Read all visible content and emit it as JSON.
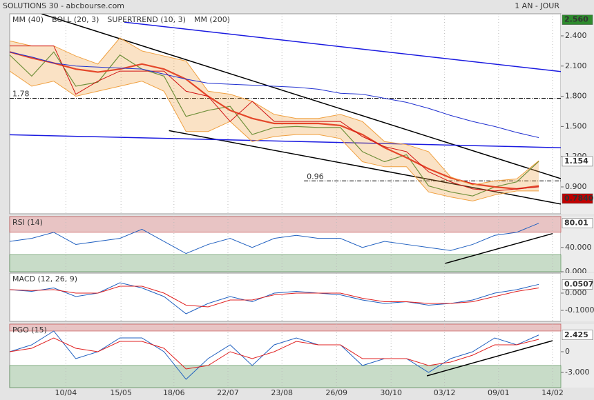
{
  "header": {
    "title": "SOLUTIONS 30 - abcbourse.com",
    "period": "1 AN - JOUR"
  },
  "chart_data": [
    {
      "type": "line",
      "xlim": [
        0,
        100
      ],
      "ylim": [
        0.633,
        2.619
      ],
      "yticks": [
        {
          "value": 2.4,
          "label": "2.400"
        },
        {
          "value": 2.1,
          "label": "2.100"
        },
        {
          "value": 1.8,
          "label": "1.800"
        },
        {
          "value": 1.5,
          "label": "1.500"
        },
        {
          "value": 1.2,
          "label": "1.200"
        },
        {
          "value": 0.9,
          "label": "0.900"
        }
      ],
      "x": [
        0,
        4,
        8,
        12,
        16,
        20,
        24,
        28,
        32,
        36,
        40,
        44,
        48,
        52,
        56,
        60,
        64,
        68,
        72,
        76,
        80,
        84,
        88,
        92,
        96
      ],
      "series": [
        {
          "color": "#3a8a3a",
          "width": 1.2,
          "values": [
            2.21,
            2.0,
            2.24,
            1.9,
            1.94,
            2.21,
            2.07,
            2.0,
            1.6,
            1.66,
            1.7,
            1.42,
            1.49,
            1.5,
            1.49,
            1.49,
            1.25,
            1.15,
            1.22,
            0.91,
            0.85,
            0.81,
            0.9,
            0.95,
            1.154
          ]
        },
        {
          "name": "MM (40)",
          "color": "#e02020",
          "width": 2.2,
          "values": [
            2.24,
            2.18,
            2.13,
            2.07,
            2.04,
            2.07,
            2.12,
            2.07,
            1.97,
            1.8,
            1.66,
            1.58,
            1.53,
            1.53,
            1.53,
            1.51,
            1.42,
            1.29,
            1.19,
            1.08,
            0.99,
            0.93,
            0.9,
            0.88,
            0.91
          ]
        },
        {
          "name": "BOLL (20, 3)",
          "color": "#f0a040",
          "upper": [
            2.35,
            2.3,
            2.3,
            2.2,
            2.12,
            2.38,
            2.25,
            2.2,
            2.15,
            1.85,
            1.82,
            1.75,
            1.62,
            1.58,
            1.58,
            1.62,
            1.55,
            1.35,
            1.32,
            1.25,
            1.0,
            0.92,
            0.96,
            0.98,
            1.16
          ],
          "lower": [
            2.05,
            1.9,
            1.95,
            1.8,
            1.85,
            1.9,
            1.95,
            1.85,
            1.45,
            1.45,
            1.55,
            1.35,
            1.4,
            1.42,
            1.42,
            1.38,
            1.15,
            1.1,
            1.1,
            0.85,
            0.8,
            0.76,
            0.82,
            0.86,
            0.86
          ]
        },
        {
          "name": "SUPERTREND (10, 3)",
          "color": "#d01010",
          "width": 1,
          "values": [
            2.3,
            2.3,
            2.3,
            1.82,
            1.95,
            2.05,
            2.05,
            2.05,
            1.85,
            1.8,
            1.55,
            1.75,
            1.55,
            1.55,
            1.55,
            1.55,
            1.4,
            1.3,
            1.25,
            1.05,
            0.95,
            0.88,
            0.86,
            0.88,
            0.9
          ]
        },
        {
          "name": "MM (200)",
          "color": "#2030d0",
          "width": 1,
          "values": [
            2.24,
            2.19,
            2.13,
            2.1,
            2.09,
            2.08,
            2.07,
            2.02,
            1.97,
            1.93,
            1.92,
            1.91,
            1.9,
            1.89,
            1.87,
            1.83,
            1.82,
            1.78,
            1.74,
            1.68,
            1.61,
            1.55,
            1.5,
            1.44,
            1.39
          ]
        }
      ],
      "trendlines": [
        {
          "x": [
            5.8,
            100
          ],
          "y": [
            2.618,
            0.982
          ],
          "color": "#000000"
        },
        {
          "x": [
            28.9,
            100
          ],
          "y": [
            1.459,
            0.73
          ],
          "color": "#000000"
        },
        {
          "x": [
            20.8,
            100
          ],
          "y": [
            2.536,
            2.045
          ],
          "color": "#1a1ae0"
        },
        {
          "x": [
            0,
            100
          ],
          "y": [
            1.418,
            1.289
          ],
          "color": "#1a1ae0"
        }
      ],
      "hlines": [
        {
          "value": 1.78,
          "label": "1.78",
          "x_start": 0
        },
        {
          "value": 0.96,
          "label": "0.96",
          "x_start": 53.4
        }
      ],
      "markers": [
        {
          "value": 2.56,
          "label": "2.560",
          "bg": "#2e8b2e",
          "fg": "#ffffff"
        },
        {
          "value": 1.154,
          "label": "1.154",
          "bg": "#ffffff",
          "fg": "#000000"
        },
        {
          "value": 0.784,
          "label": "0.7840",
          "bg": "#c00000",
          "fg": "#ffffff"
        }
      ]
    },
    {
      "type": "line",
      "title": "RSI (14)",
      "xlim": [
        0,
        100
      ],
      "ylim": [
        0,
        91
      ],
      "yticks": [
        {
          "value": 40,
          "label": "40.000"
        },
        {
          "value": 0,
          "label": "0.000"
        }
      ],
      "zones": {
        "upper": 65,
        "lower": 28
      },
      "x": [
        0,
        4,
        8,
        12,
        16,
        20,
        24,
        28,
        32,
        36,
        40,
        44,
        48,
        52,
        56,
        60,
        64,
        68,
        72,
        76,
        80,
        84,
        88,
        92,
        96
      ],
      "series": [
        {
          "color": "#2060c0",
          "width": 1,
          "values": [
            50,
            55,
            65,
            45,
            50,
            55,
            70,
            50,
            30,
            45,
            55,
            40,
            55,
            60,
            55,
            55,
            40,
            50,
            45,
            40,
            35,
            45,
            60,
            65,
            80.01
          ]
        }
      ],
      "trendlines": [
        {
          "x": [
            79,
            98.5
          ],
          "y": [
            13.7,
            62.9
          ],
          "color": "#000000"
        }
      ],
      "markers": [
        {
          "value": 80.01,
          "label": "80.01",
          "bg": "#ffffff",
          "fg": "#000000"
        }
      ]
    },
    {
      "type": "line",
      "title": "MACD (12, 26, 9)",
      "xlim": [
        0,
        100
      ],
      "ylim": [
        -0.164,
        0.116
      ],
      "yticks": [
        {
          "value": 0,
          "label": "0.000"
        },
        {
          "value": -0.1,
          "label": "-0.1000"
        }
      ],
      "x": [
        0,
        4,
        8,
        12,
        16,
        20,
        24,
        28,
        32,
        36,
        40,
        44,
        48,
        52,
        56,
        60,
        64,
        68,
        72,
        76,
        80,
        84,
        88,
        92,
        96
      ],
      "series": [
        {
          "color": "#2060c0",
          "width": 1,
          "values": [
            0.02,
            0.01,
            0.03,
            -0.02,
            0.0,
            0.06,
            0.03,
            -0.02,
            -0.12,
            -0.06,
            -0.02,
            -0.05,
            0.0,
            0.01,
            0.0,
            -0.01,
            -0.04,
            -0.06,
            -0.05,
            -0.07,
            -0.06,
            -0.04,
            0.0,
            0.02,
            0.0507
          ]
        },
        {
          "color": "#e02020",
          "width": 1,
          "values": [
            0.02,
            0.015,
            0.02,
            0.0,
            0.0,
            0.04,
            0.04,
            0.0,
            -0.07,
            -0.08,
            -0.04,
            -0.04,
            -0.01,
            0.0,
            0.0,
            0.0,
            -0.03,
            -0.05,
            -0.05,
            -0.06,
            -0.06,
            -0.05,
            -0.02,
            0.01,
            0.03
          ]
        }
      ],
      "markers": [
        {
          "value": 0.0507,
          "label": "0.0507",
          "bg": "#ffffff",
          "fg": "#000000"
        }
      ]
    },
    {
      "type": "line",
      "title": "PGO (15)",
      "xlim": [
        0,
        100
      ],
      "ylim": [
        -5.2,
        4.0
      ],
      "yticks": [
        0,
        {
          "value": -3,
          "label": "-3.000"
        }
      ],
      "zones": {
        "upper": 3,
        "lower": -2
      },
      "xticks": [
        {
          "value": 10.2,
          "label": "10/04"
        },
        {
          "value": 20.2,
          "label": "15/05"
        },
        {
          "value": 29.8,
          "label": "18/06"
        },
        {
          "value": 39.6,
          "label": "22/07"
        },
        {
          "value": 49.4,
          "label": "23/08"
        },
        {
          "value": 59.3,
          "label": "26/09"
        },
        {
          "value": 69.2,
          "label": "30/10"
        },
        {
          "value": 78.9,
          "label": "03/12"
        },
        {
          "value": 88.7,
          "label": "09/01"
        },
        {
          "value": 98.5,
          "label": "14/02"
        }
      ],
      "x": [
        0,
        4,
        8,
        12,
        16,
        20,
        24,
        28,
        32,
        36,
        40,
        44,
        48,
        52,
        56,
        60,
        64,
        68,
        72,
        76,
        80,
        84,
        88,
        92,
        96
      ],
      "series": [
        {
          "color": "#2060c0",
          "width": 1,
          "values": [
            0,
            1,
            3,
            -1,
            0,
            2,
            2,
            0,
            -4,
            -1,
            1,
            -2,
            1,
            2,
            1,
            1,
            -2,
            -1,
            -1,
            -3,
            -1,
            0,
            2,
            1,
            2.425
          ]
        },
        {
          "color": "#e02020",
          "width": 1,
          "values": [
            0,
            0.5,
            2,
            0.5,
            0,
            1.5,
            1.5,
            0.5,
            -2.5,
            -2,
            0,
            -1,
            0,
            1.5,
            1,
            1,
            -1,
            -1,
            -1,
            -2,
            -1.5,
            -0.5,
            1,
            1,
            1.8
          ]
        }
      ],
      "trendlines": [
        {
          "x": [
            75.7,
            98.5
          ],
          "y": [
            -3.5,
            1.6
          ],
          "color": "#000000"
        }
      ],
      "markers": [
        {
          "value": 2.425,
          "label": "2.425",
          "bg": "#ffffff",
          "fg": "#000000"
        }
      ]
    }
  ]
}
